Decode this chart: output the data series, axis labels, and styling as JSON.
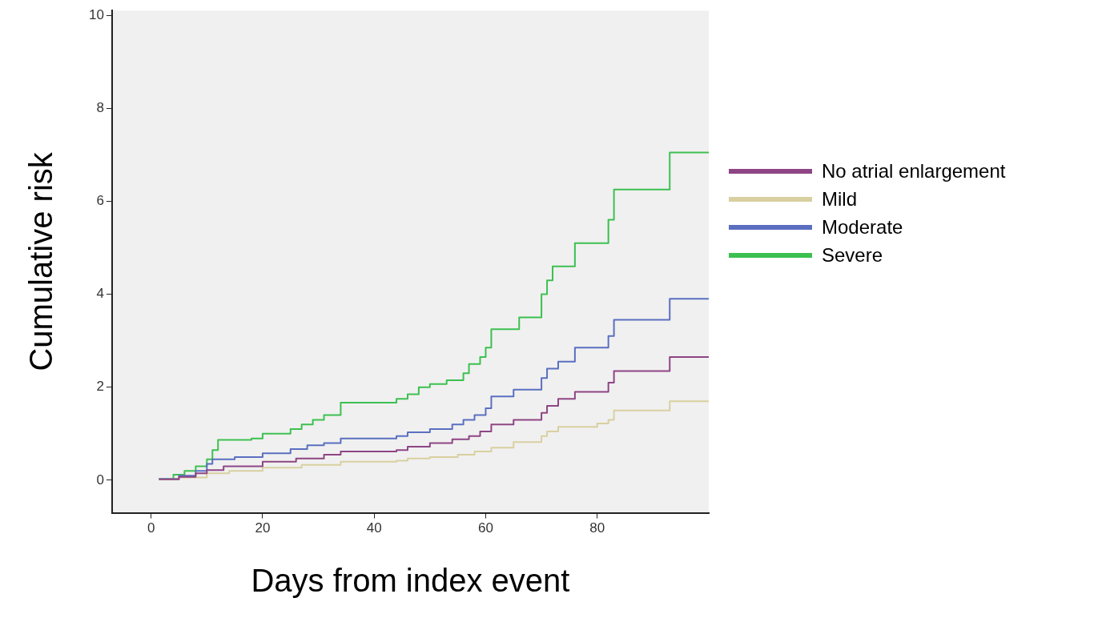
{
  "chart_data": {
    "type": "step",
    "xlabel": "Days from index event",
    "ylabel": "Cumulative risk",
    "xlim": [
      -7,
      100
    ],
    "xticks": [
      0,
      20,
      40,
      60,
      80
    ],
    "ylim": [
      -0.7,
      10.1
    ],
    "yticks": [
      0,
      2,
      4,
      6,
      8,
      10
    ],
    "grid": false,
    "legend": "right",
    "marker": "none",
    "line_style": "solid",
    "series": [
      {
        "name": "No atrial enlargement",
        "color": "#8e4585",
        "x": [
          1.4,
          5,
          8,
          10,
          13,
          20,
          26,
          31,
          34,
          44,
          46,
          50,
          54,
          57,
          59,
          61,
          65,
          70,
          71,
          73,
          76,
          82,
          83,
          93,
          100
        ],
        "values": [
          0.02,
          0.07,
          0.15,
          0.22,
          0.3,
          0.4,
          0.47,
          0.55,
          0.62,
          0.65,
          0.72,
          0.8,
          0.88,
          0.95,
          1.05,
          1.2,
          1.3,
          1.45,
          1.6,
          1.75,
          1.9,
          2.1,
          2.35,
          2.65,
          2.65
        ]
      },
      {
        "name": "Mild",
        "color": "#d8d0a0",
        "x": [
          1.4,
          5,
          10,
          14,
          20,
          27,
          34,
          44,
          46,
          50,
          55,
          58,
          61,
          65,
          70,
          71,
          73,
          80,
          82,
          83,
          93,
          100
        ],
        "values": [
          0.02,
          0.06,
          0.15,
          0.2,
          0.27,
          0.33,
          0.4,
          0.42,
          0.47,
          0.5,
          0.55,
          0.62,
          0.7,
          0.82,
          0.95,
          1.05,
          1.15,
          1.22,
          1.3,
          1.5,
          1.7,
          1.7
        ]
      },
      {
        "name": "Moderate",
        "color": "#5a6fc0",
        "x": [
          1.4,
          5,
          8,
          10,
          11,
          15,
          20,
          25,
          28,
          31,
          34,
          44,
          46,
          50,
          54,
          56,
          58,
          60,
          61,
          65,
          70,
          71,
          73,
          76,
          82,
          83,
          93,
          100
        ],
        "values": [
          0.03,
          0.1,
          0.2,
          0.35,
          0.45,
          0.5,
          0.58,
          0.67,
          0.75,
          0.8,
          0.9,
          0.95,
          1.03,
          1.1,
          1.2,
          1.3,
          1.4,
          1.55,
          1.8,
          1.95,
          2.2,
          2.4,
          2.55,
          2.85,
          3.1,
          3.45,
          3.9,
          3.9
        ]
      },
      {
        "name": "Severe",
        "color": "#3cc050",
        "x": [
          1.4,
          4,
          6,
          8,
          10,
          11,
          12,
          18,
          20,
          25,
          27,
          29,
          31,
          34,
          44,
          46,
          48,
          50,
          53,
          56,
          57,
          59,
          60,
          61,
          66,
          70,
          71,
          72,
          76,
          82,
          83,
          93,
          100
        ],
        "values": [
          0.03,
          0.12,
          0.2,
          0.3,
          0.45,
          0.65,
          0.87,
          0.9,
          1.0,
          1.1,
          1.2,
          1.3,
          1.4,
          1.67,
          1.75,
          1.85,
          2.0,
          2.07,
          2.15,
          2.3,
          2.5,
          2.65,
          2.85,
          3.25,
          3.5,
          4.0,
          4.3,
          4.6,
          5.1,
          5.6,
          6.25,
          7.05,
          7.05
        ]
      }
    ]
  }
}
